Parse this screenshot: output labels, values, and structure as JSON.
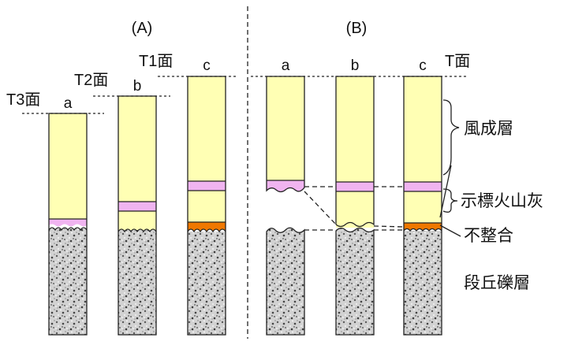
{
  "panels": {
    "A": {
      "title": "(A)",
      "surfaces": [
        "T3面",
        "T2面",
        "T1面"
      ],
      "columns": [
        "a",
        "b",
        "c"
      ]
    },
    "B": {
      "title": "(B)",
      "surface": "T面",
      "columns": [
        "a",
        "b",
        "c"
      ]
    }
  },
  "legend": {
    "eolian": "風成層",
    "tephra": "示標火山灰",
    "unconformity": "不整合",
    "gravel": "段丘礫層"
  },
  "colors": {
    "eolian": "#ffffb4",
    "tephra": "#f0b4f0",
    "unconformity": "#f07800",
    "gravel_base": "#d2d2d2"
  }
}
